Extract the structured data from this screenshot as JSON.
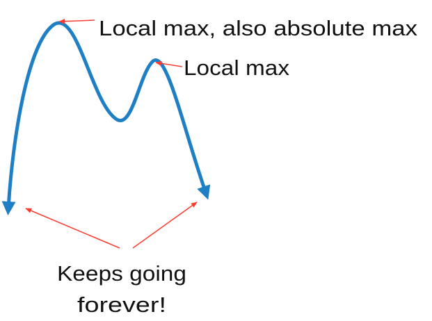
{
  "labels": {
    "absolute_max": "Local max, also absolute max",
    "local_max": "Local max",
    "forever_line1": "Keeps going",
    "forever_line2": "forever!"
  },
  "colors": {
    "curve": "#1f7fc4",
    "annotation_arrow": "#ff3b30",
    "text": "#111111",
    "background": "#ffffff"
  }
}
